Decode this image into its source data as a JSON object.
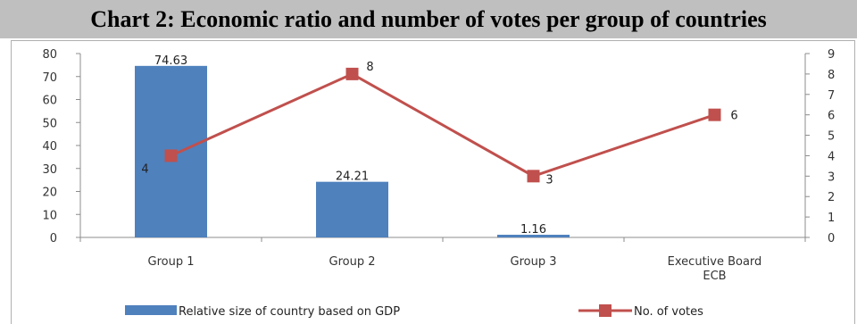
{
  "chart_data": {
    "type": "bar",
    "title": "Chart 2: Economic ratio and number of votes per group of countries",
    "categories": [
      [
        "Group 1"
      ],
      [
        "Group 2"
      ],
      [
        "Group 3"
      ],
      [
        "Executive Board",
        "ECB"
      ]
    ],
    "series": [
      {
        "name": "Relative size of country based on GDP",
        "type": "bar",
        "axis": "left",
        "values": [
          74.63,
          24.21,
          1.16,
          null
        ],
        "labels": [
          "74.63",
          "24.21",
          "1.16",
          ""
        ],
        "color": "#4f81bd"
      },
      {
        "name": "No. of votes",
        "type": "line",
        "axis": "right",
        "values": [
          4,
          8,
          3,
          6
        ],
        "labels": [
          "4",
          "8",
          "3",
          "6"
        ],
        "color": "#c0504d"
      }
    ],
    "y_left": {
      "min": 0,
      "max": 80,
      "step": 10,
      "ticks": [
        "0",
        "10",
        "20",
        "30",
        "40",
        "50",
        "60",
        "70",
        "80"
      ]
    },
    "y_right": {
      "min": 0,
      "max": 9,
      "step": 1,
      "ticks": [
        "0",
        "1",
        "2",
        "3",
        "4",
        "5",
        "6",
        "7",
        "8",
        "9"
      ]
    },
    "legend_position": "bottom",
    "grid": false
  }
}
